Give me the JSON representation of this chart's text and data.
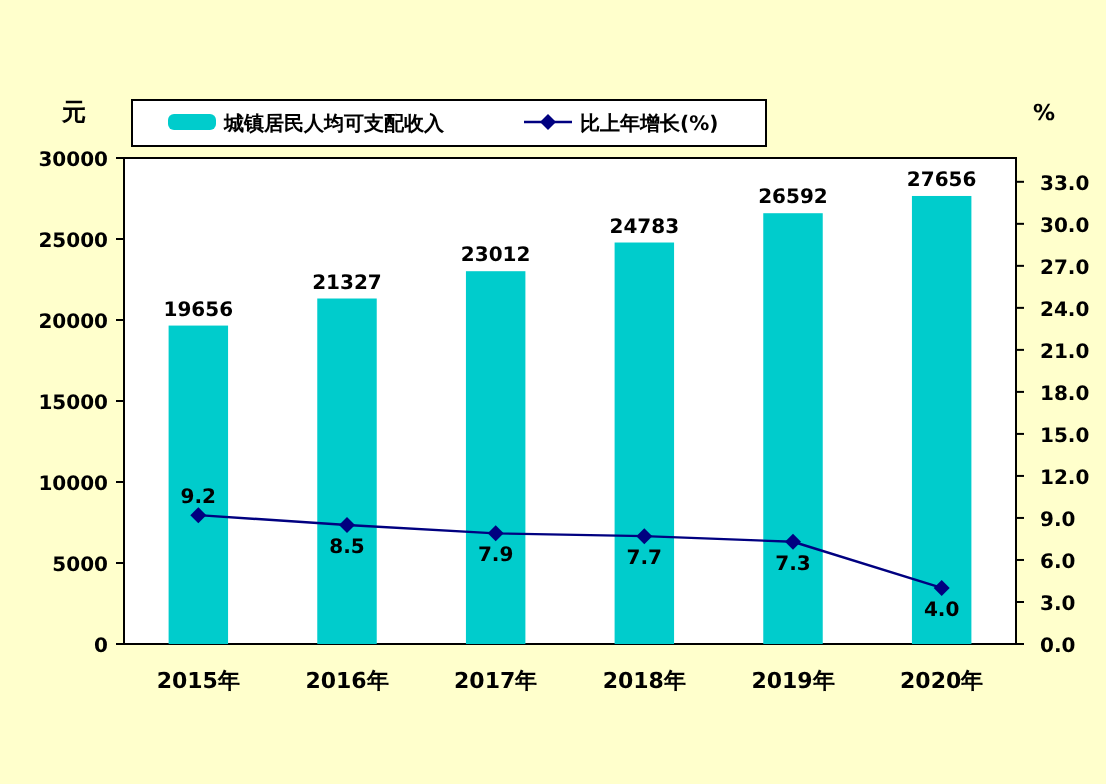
{
  "chart_data": {
    "type": "bar",
    "categories": [
      "2015年",
      "2016年",
      "2017年",
      "2018年",
      "2019年",
      "2020年"
    ],
    "series": [
      {
        "name": "城镇居民人均可支配收入",
        "color": "#00cccc",
        "values": [
          19656,
          21327,
          23012,
          24783,
          26592,
          27656
        ]
      },
      {
        "name": "比上年增长(%)",
        "type": "line",
        "axis": "y2",
        "color": "#000080",
        "values": [
          9.2,
          8.5,
          7.9,
          7.7,
          7.3,
          4.0
        ],
        "value_labels": [
          "9.2",
          "8.5",
          "7.9",
          "7.7",
          "7.3",
          "4.0"
        ]
      }
    ],
    "ylabel": "元",
    "y2label": "%",
    "ylim": [
      0,
      30000
    ],
    "yticks": [
      0,
      {
        "value": 5000,
        "label": "5000"
      },
      {
        "value": 10000,
        "label": "10000"
      },
      {
        "value": 15000,
        "label": "15000"
      },
      {
        "value": 20000,
        "label": "20000"
      },
      {
        "value": 25000,
        "label": "25000"
      },
      {
        "value": 30000,
        "label": "30000"
      }
    ],
    "y2lim": [
      0,
      34.7
    ],
    "y2ticks": [
      {
        "value": 0,
        "label": "0.0"
      },
      {
        "value": 3,
        "label": "3.0"
      },
      {
        "value": 6,
        "label": "6.0"
      },
      {
        "value": 9,
        "label": "9.0"
      },
      {
        "value": 12,
        "label": "12.0"
      },
      {
        "value": 15,
        "label": "15.0"
      },
      {
        "value": 18,
        "label": "18.0"
      },
      {
        "value": 21,
        "label": "21.0"
      },
      {
        "value": 24,
        "label": "24.0"
      },
      {
        "value": 27,
        "label": "27.0"
      },
      {
        "value": 30,
        "label": "30.0"
      },
      {
        "value": 33,
        "label": "33.0"
      }
    ],
    "data_labels": true,
    "legend": "top",
    "marker": "diamond",
    "grid": false
  }
}
